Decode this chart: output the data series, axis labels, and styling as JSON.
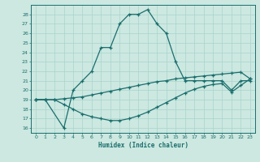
{
  "xlabel": "Humidex (Indice chaleur)",
  "bg_color": "#cce8e0",
  "grid_color": "#a8d4cc",
  "line_color": "#1a6e6e",
  "xlim": [
    -0.5,
    23.5
  ],
  "ylim": [
    15.5,
    29.0
  ],
  "xticks": [
    0,
    1,
    2,
    3,
    4,
    5,
    6,
    7,
    8,
    9,
    10,
    11,
    12,
    13,
    14,
    15,
    16,
    17,
    18,
    19,
    20,
    21,
    22,
    23
  ],
  "yticks": [
    16,
    17,
    18,
    19,
    20,
    21,
    22,
    23,
    24,
    25,
    26,
    27,
    28
  ],
  "series1_x": [
    0,
    1,
    3,
    4,
    5,
    6,
    7,
    8,
    9,
    10,
    11,
    12,
    13,
    14,
    15,
    16,
    17,
    18,
    19,
    20,
    21,
    22,
    23
  ],
  "series1_y": [
    19,
    19,
    16,
    20,
    21,
    22,
    24.5,
    24.5,
    27,
    28,
    28,
    28.5,
    27,
    26,
    23,
    21,
    21,
    21,
    21,
    21,
    20,
    21,
    21
  ],
  "series2_x": [
    0,
    1,
    2,
    3,
    4,
    5,
    6,
    7,
    8,
    9,
    10,
    11,
    12,
    13,
    14,
    15,
    16,
    17,
    18,
    19,
    20,
    21,
    22,
    23
  ],
  "series2_y": [
    19.0,
    19.0,
    19.0,
    19.1,
    19.2,
    19.3,
    19.5,
    19.7,
    19.9,
    20.1,
    20.3,
    20.5,
    20.7,
    20.9,
    21.0,
    21.2,
    21.3,
    21.4,
    21.5,
    21.6,
    21.7,
    21.8,
    21.9,
    21.2
  ],
  "series3_x": [
    0,
    1,
    2,
    3,
    4,
    5,
    6,
    7,
    8,
    9,
    10,
    11,
    12,
    13,
    14,
    15,
    16,
    17,
    18,
    19,
    20,
    21,
    22,
    23
  ],
  "series3_y": [
    19.0,
    19.0,
    19.0,
    18.5,
    18.0,
    17.5,
    17.2,
    17.0,
    16.8,
    16.8,
    17.0,
    17.3,
    17.7,
    18.2,
    18.7,
    19.2,
    19.7,
    20.1,
    20.4,
    20.6,
    20.7,
    19.8,
    20.5,
    21.2
  ]
}
